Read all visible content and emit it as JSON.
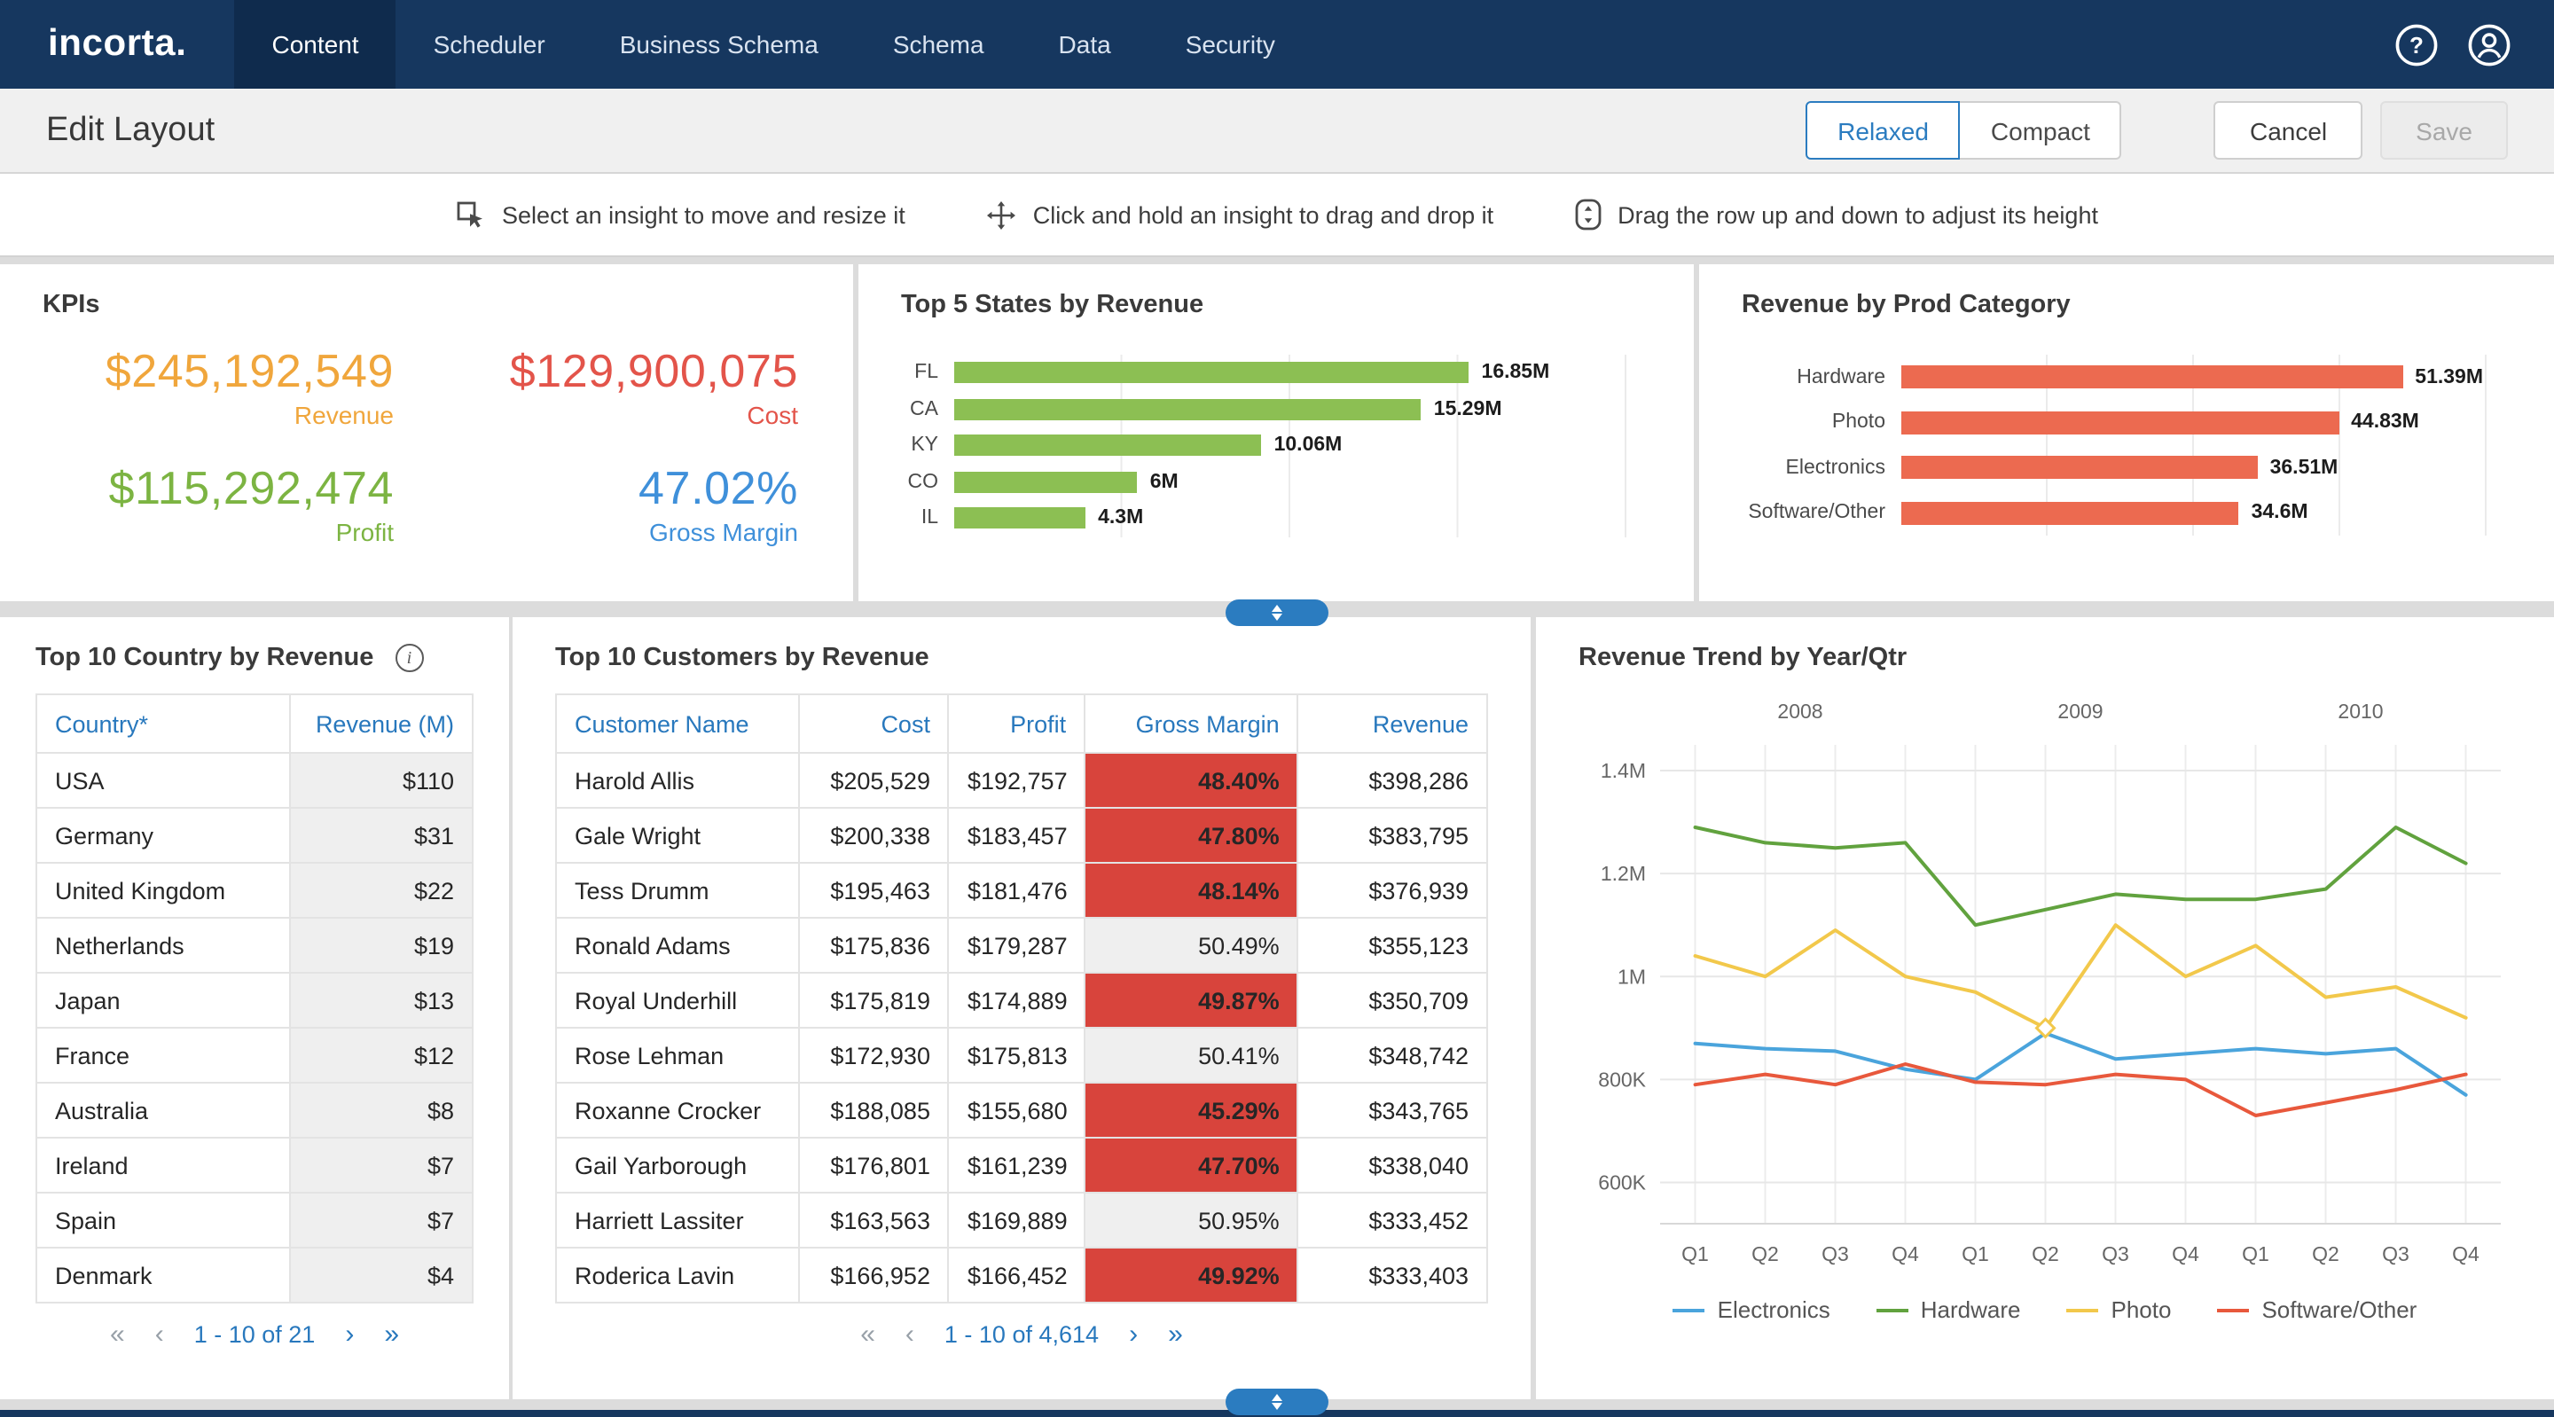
{
  "navbar": {
    "logo": "incorta.",
    "tabs": [
      {
        "label": "Content",
        "active": true
      },
      {
        "label": "Scheduler",
        "active": false
      },
      {
        "label": "Business Schema",
        "active": false
      },
      {
        "label": "Schema",
        "active": false
      },
      {
        "label": "Data",
        "active": false
      },
      {
        "label": "Security",
        "active": false
      }
    ],
    "icons": [
      "help-icon",
      "user-icon"
    ]
  },
  "edit_bar": {
    "title": "Edit Layout",
    "density_toggle": [
      {
        "label": "Relaxed",
        "active": true
      },
      {
        "label": "Compact",
        "active": false
      }
    ],
    "cancel_label": "Cancel",
    "save_label": "Save"
  },
  "hints": [
    {
      "icon": "select-insight-icon",
      "text": "Select an insight to move and resize it"
    },
    {
      "icon": "drag-insight-icon",
      "text": "Click and hold an insight to drag and drop it"
    },
    {
      "icon": "row-height-icon",
      "text": "Drag the row up and down to adjust its height"
    }
  ],
  "panels": {
    "kpis": {
      "title": "KPIs",
      "items": [
        {
          "value": "$245,192,549",
          "label": "Revenue",
          "color": "#f0a63c"
        },
        {
          "value": "$129,900,075",
          "label": "Cost",
          "color": "#e3544a"
        },
        {
          "value": "$115,292,474",
          "label": "Profit",
          "color": "#7cb442"
        },
        {
          "value": "47.02%",
          "label": "Gross Margin",
          "color": "#3f90da"
        }
      ]
    },
    "top_states": {
      "title": "Top 5 States by Revenue",
      "chart_data": {
        "type": "bar",
        "orientation": "horizontal",
        "categories": [
          "FL",
          "CA",
          "KY",
          "CO",
          "IL"
        ],
        "values": [
          16.85,
          15.29,
          10.06,
          6,
          4.3
        ],
        "value_labels": [
          "16.85M",
          "15.29M",
          "10.06M",
          "6M",
          "4.3M"
        ],
        "unit": "M",
        "bar_color": "#8cbf53",
        "xmax": 22
      }
    },
    "prod_category": {
      "title": "Revenue by Prod Category",
      "chart_data": {
        "type": "bar",
        "orientation": "horizontal",
        "categories": [
          "Hardware",
          "Photo",
          "Electronics",
          "Software/Other"
        ],
        "values": [
          51.39,
          44.83,
          36.51,
          34.6
        ],
        "value_labels": [
          "51.39M",
          "44.83M",
          "36.51M",
          "34.6M"
        ],
        "unit": "M",
        "bar_color": "#ec6a50",
        "xmax": 60
      }
    },
    "top_countries": {
      "title": "Top 10 Country by Revenue",
      "columns": [
        "Country*",
        "Revenue (M)"
      ],
      "rows": [
        {
          "country": "USA",
          "revenue": "$110"
        },
        {
          "country": "Germany",
          "revenue": "$31"
        },
        {
          "country": "United Kingdom",
          "revenue": "$22"
        },
        {
          "country": "Netherlands",
          "revenue": "$19"
        },
        {
          "country": "Japan",
          "revenue": "$13"
        },
        {
          "country": "France",
          "revenue": "$12"
        },
        {
          "country": "Australia",
          "revenue": "$8"
        },
        {
          "country": "Ireland",
          "revenue": "$7"
        },
        {
          "country": "Spain",
          "revenue": "$7"
        },
        {
          "country": "Denmark",
          "revenue": "$4"
        }
      ],
      "pagination": {
        "range": "1 - 10 of 21"
      }
    },
    "top_customers": {
      "title": "Top 10 Customers by Revenue",
      "columns": [
        "Customer Name",
        "Cost",
        "Profit",
        "Gross Margin",
        "Revenue"
      ],
      "margin_highlight_color": "#d8443c",
      "rows": [
        {
          "name": "Harold Allis",
          "cost": "$205,529",
          "profit": "$192,757",
          "margin": "48.40%",
          "margin_flag": true,
          "revenue": "$398,286"
        },
        {
          "name": "Gale Wright",
          "cost": "$200,338",
          "profit": "$183,457",
          "margin": "47.80%",
          "margin_flag": true,
          "revenue": "$383,795"
        },
        {
          "name": "Tess Drumm",
          "cost": "$195,463",
          "profit": "$181,476",
          "margin": "48.14%",
          "margin_flag": true,
          "revenue": "$376,939"
        },
        {
          "name": "Ronald Adams",
          "cost": "$175,836",
          "profit": "$179,287",
          "margin": "50.49%",
          "margin_flag": false,
          "revenue": "$355,123"
        },
        {
          "name": "Royal Underhill",
          "cost": "$175,819",
          "profit": "$174,889",
          "margin": "49.87%",
          "margin_flag": true,
          "revenue": "$350,709"
        },
        {
          "name": "Rose Lehman",
          "cost": "$172,930",
          "profit": "$175,813",
          "margin": "50.41%",
          "margin_flag": false,
          "revenue": "$348,742"
        },
        {
          "name": "Roxanne Crocker",
          "cost": "$188,085",
          "profit": "$155,680",
          "margin": "45.29%",
          "margin_flag": true,
          "revenue": "$343,765"
        },
        {
          "name": "Gail Yarborough",
          "cost": "$176,801",
          "profit": "$161,239",
          "margin": "47.70%",
          "margin_flag": true,
          "revenue": "$338,040"
        },
        {
          "name": "Harriett Lassiter",
          "cost": "$163,563",
          "profit": "$169,889",
          "margin": "50.95%",
          "margin_flag": false,
          "revenue": "$333,452"
        },
        {
          "name": "Roderica Lavin",
          "cost": "$166,952",
          "profit": "$166,452",
          "margin": "49.92%",
          "margin_flag": true,
          "revenue": "$333,403"
        }
      ],
      "pagination": {
        "range": "1 - 10 of 4,614"
      }
    },
    "revenue_trend": {
      "title": "Revenue Trend by Year/Qtr",
      "chart_data": {
        "type": "line",
        "x_groups": [
          "2008",
          "2009",
          "2010"
        ],
        "x_labels": [
          "Q1",
          "Q2",
          "Q3",
          "Q4",
          "Q1",
          "Q2",
          "Q3",
          "Q4",
          "Q1",
          "Q2",
          "Q3",
          "Q4"
        ],
        "y_ticks": [
          600000,
          800000,
          1000000,
          1200000,
          1400000
        ],
        "y_tick_labels": [
          "600K",
          "800K",
          "1M",
          "1.2M",
          "1.4M"
        ],
        "y_min": 520000,
        "y_max": 1450000,
        "legend_position": "bottom",
        "series": [
          {
            "name": "Electronics",
            "color": "#4aa4dc",
            "values": [
              870000,
              860000,
              855000,
              820000,
              800000,
              890000,
              840000,
              850000,
              860000,
              850000,
              860000,
              770000
            ]
          },
          {
            "name": "Hardware",
            "color": "#61a23e",
            "values": [
              1290000,
              1260000,
              1250000,
              1260000,
              1100000,
              1130000,
              1160000,
              1150000,
              1150000,
              1170000,
              1290000,
              1220000
            ]
          },
          {
            "name": "Photo",
            "color": "#f2c84b",
            "values": [
              1040000,
              1000000,
              1090000,
              1000000,
              970000,
              900000,
              1100000,
              1000000,
              1060000,
              960000,
              980000,
              920000
            ]
          },
          {
            "name": "Software/Other",
            "color": "#e8583c",
            "values": [
              790000,
              810000,
              790000,
              830000,
              795000,
              790000,
              810000,
              800000,
              730000,
              755000,
              780000,
              810000
            ]
          }
        ],
        "marker": {
          "series": "Photo",
          "index": 5
        }
      }
    }
  },
  "drag_handle_color": "#2b7cc0"
}
